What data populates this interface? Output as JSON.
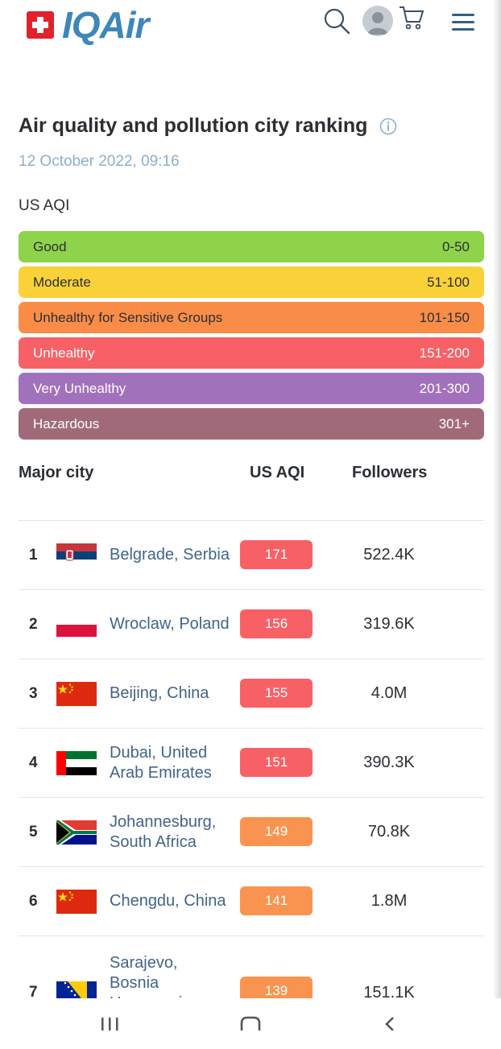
{
  "header": {
    "logo_text": "IQAir",
    "icons": [
      "swiss-flag-icon",
      "search-icon",
      "user-avatar-icon",
      "cart-icon",
      "menu-icon"
    ]
  },
  "page": {
    "title": "Air quality and pollution city ranking",
    "date": "12 October 2022, 09:16",
    "aqi_heading": "US AQI"
  },
  "scale": [
    {
      "label": "Good",
      "range": "0-50",
      "color": "#8ed34a",
      "text_color": "#2b2f33"
    },
    {
      "label": "Moderate",
      "range": "51-100",
      "color": "#fbd13a",
      "text_color": "#2b2f33"
    },
    {
      "label": "Unhealthy for Sensitive Groups",
      "range": "101-150",
      "color": "#f98d48",
      "text_color": "#2b2f33"
    },
    {
      "label": "Unhealthy",
      "range": "151-200",
      "color": "#f76166",
      "text_color": "#ffffff"
    },
    {
      "label": "Very Unhealthy",
      "range": "201-300",
      "color": "#a271bb",
      "text_color": "#ffffff"
    },
    {
      "label": "Hazardous",
      "range": "301+",
      "color": "#a06a79",
      "text_color": "#ffffff"
    }
  ],
  "table": {
    "headers": {
      "city": "Major city",
      "aqi": "US AQI",
      "followers": "Followers"
    },
    "rows": [
      {
        "rank": "1",
        "city": "Belgrade, Serbia",
        "aqi": "171",
        "followers": "522.4K",
        "flag": "serbia",
        "color": "#f76166"
      },
      {
        "rank": "2",
        "city": "Wroclaw, Poland",
        "aqi": "156",
        "followers": "319.6K",
        "flag": "poland",
        "color": "#f76166"
      },
      {
        "rank": "3",
        "city": "Beijing, China",
        "aqi": "155",
        "followers": "4.0M",
        "flag": "china",
        "color": "#f76166"
      },
      {
        "rank": "4",
        "city": "Dubai, United Arab Emirates",
        "aqi": "151",
        "followers": "390.3K",
        "flag": "uae",
        "color": "#f76166"
      },
      {
        "rank": "5",
        "city": "Johannesburg, South Africa",
        "aqi": "149",
        "followers": "70.8K",
        "flag": "south-africa",
        "color": "#f99450"
      },
      {
        "rank": "6",
        "city": "Chengdu, China",
        "aqi": "141",
        "followers": "1.8M",
        "flag": "china",
        "color": "#f99450"
      },
      {
        "rank": "7",
        "city": "Sarajevo, Bosnia Herzegovina",
        "aqi": "139",
        "followers": "151.1K",
        "flag": "bosnia",
        "color": "#f99450"
      }
    ]
  },
  "navbar": {
    "icons": [
      "recent-apps-icon",
      "home-icon",
      "back-icon"
    ]
  }
}
